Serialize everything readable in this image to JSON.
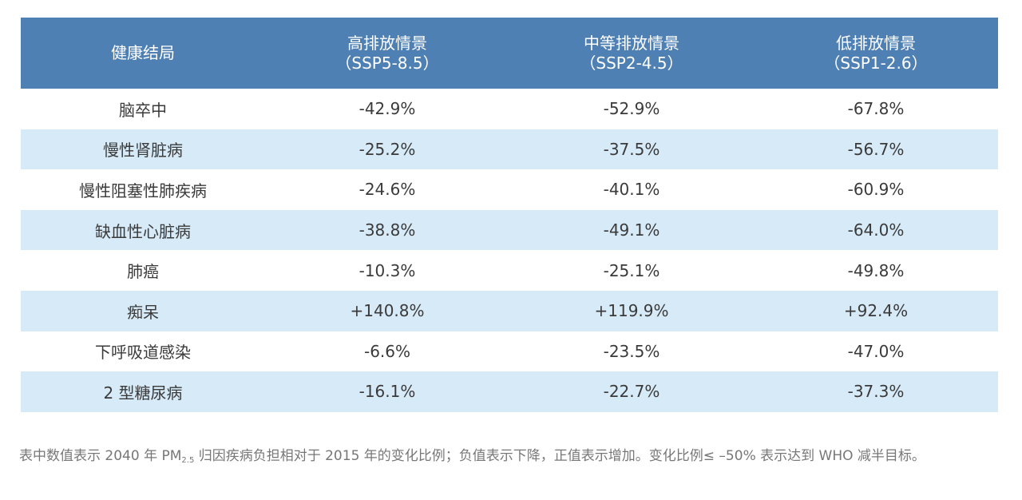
{
  "table": {
    "headers": [
      {
        "line1": "健康结局",
        "line2": ""
      },
      {
        "line1": "高排放情景",
        "line2": "（SSP5-8.5）"
      },
      {
        "line1": "中等排放情景",
        "line2": "（SSP2-4.5）"
      },
      {
        "line1": "低排放情景",
        "line2": "（SSP1-2.6）"
      }
    ],
    "rows": [
      [
        "脑卒中",
        "-42.9%",
        "-52.9%",
        "-67.8%"
      ],
      [
        "慢性肾脏病",
        "-25.2%",
        "-37.5%",
        "-56.7%"
      ],
      [
        "慢性阻塞性肺疾病",
        "-24.6%",
        "-40.1%",
        "-60.9%"
      ],
      [
        "缺血性心脏病",
        "-38.8%",
        "-49.1%",
        "-64.0%"
      ],
      [
        "肺癌",
        "-10.3%",
        "-25.1%",
        "-49.8%"
      ],
      [
        "痴呆",
        "+140.8%",
        "+119.9%",
        "+92.4%"
      ],
      [
        "下呼吸道感染",
        "-6.6%",
        "-23.5%",
        "-47.0%"
      ],
      [
        "2 型糖尿病",
        "-16.1%",
        "-22.7%",
        "-37.3%"
      ]
    ]
  },
  "note": {
    "before": "表中数值表示 2040 年 PM",
    "subscript": "2.5",
    "after": " 归因疾病负担相对于 2015 年的变化比例；负值表示下降，正值表示增加。变化比例≤ –50% 表示达到 WHO 减半目标。"
  },
  "colors": {
    "header_bg": "#4f80b4",
    "stripe_bg": "#d7eaf7",
    "text": "#3a3a3a",
    "note_text": "#777777"
  }
}
